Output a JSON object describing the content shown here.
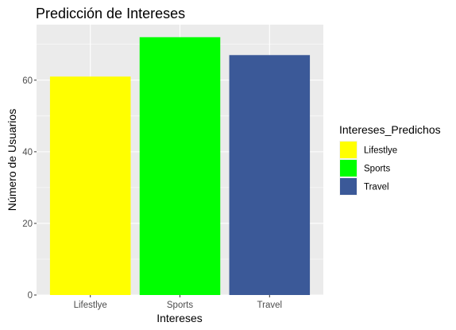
{
  "chart_data": {
    "type": "bar",
    "title": "Predicción de Intereses",
    "xlabel": "Intereses",
    "ylabel": "Número de Usuarios",
    "categories": [
      "Lifestlye",
      "Sports",
      "Travel"
    ],
    "values": [
      61,
      72,
      67
    ],
    "colors": [
      "#ffff00",
      "#00ff00",
      "#3b5998"
    ],
    "ylim": [
      0,
      75.5
    ],
    "yticks": [
      0,
      20,
      40,
      60
    ],
    "grid": true,
    "panel_background": "#ebebeb",
    "legend": {
      "title": "Intereses_Predichos",
      "placement": "right",
      "items": [
        {
          "label": "Lifestlye",
          "color": "#ffff00"
        },
        {
          "label": "Sports",
          "color": "#00ff00"
        },
        {
          "label": "Travel",
          "color": "#3b5998"
        }
      ]
    }
  }
}
